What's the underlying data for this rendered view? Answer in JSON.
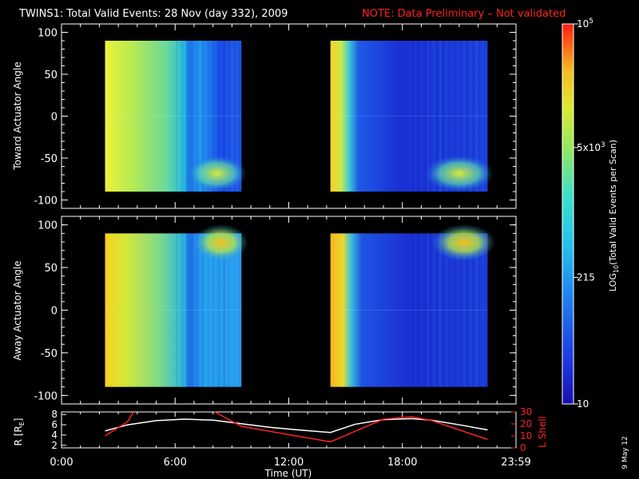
{
  "title": "TWINS1: Total Valid Events: 28 Nov (day 332), 2009",
  "note": "NOTE: Data Preliminary – Not validated",
  "stamp": "9 May 12",
  "colors": {
    "note": "#ff2020",
    "axes": "#ffffff",
    "background": "#000000",
    "lshell": "#ff2020",
    "radius": "#ffffff"
  },
  "chart_data": [
    {
      "type": "heatmap",
      "panel": "toward",
      "ylabel": "Toward Actuator Angle",
      "ylim": [
        -110,
        110
      ],
      "yticks": [
        "100",
        "50",
        "0",
        "-50",
        "-100"
      ],
      "ytick_values": [
        100,
        50,
        0,
        -50,
        -100
      ],
      "xlim_hours": [
        0,
        24
      ],
      "data_blocks_hours": [
        [
          2.3,
          9.5
        ],
        [
          14.2,
          22.5
        ]
      ],
      "angle_range": [
        -90,
        90
      ]
    },
    {
      "type": "heatmap",
      "panel": "away",
      "ylabel": "Away Actuator Angle",
      "ylim": [
        -110,
        110
      ],
      "yticks": [
        "100",
        "50",
        "0",
        "-50",
        "-100"
      ],
      "ytick_values": [
        100,
        50,
        0,
        -50,
        -100
      ],
      "xlim_hours": [
        0,
        24
      ],
      "data_blocks_hours": [
        [
          2.3,
          9.5
        ],
        [
          14.2,
          22.5
        ]
      ],
      "angle_range": [
        -90,
        90
      ]
    },
    {
      "type": "line",
      "panel": "orbit",
      "ylabel_left": "R [RE]",
      "ylabel_left_main": "R [R",
      "ylabel_left_sub": "E",
      "ylabel_left_close": "]",
      "ylabel_right": "L Shell",
      "ylim_left": [
        1.5,
        8.5
      ],
      "ylim_right": [
        0,
        30
      ],
      "yticks_left": [
        "8",
        "6",
        "4",
        "2"
      ],
      "yticks_left_values": [
        8,
        6,
        4,
        2
      ],
      "yticks_right": [
        "30",
        "20",
        "10",
        "0"
      ],
      "yticks_right_values": [
        30,
        20,
        10,
        0
      ],
      "xlabel": "Time (UT)",
      "xticks": [
        "0:00",
        "6:00",
        "12:00",
        "18:00",
        "23:59"
      ],
      "xtick_hours": [
        0,
        6,
        12,
        18,
        24
      ],
      "series": [
        {
          "name": "R",
          "axis": "left",
          "x": [
            2.3,
            3.5,
            5,
            6.5,
            8,
            9.5,
            11,
            12.5,
            14.2,
            15.5,
            17,
            18.5,
            19.5,
            21,
            22.5
          ],
          "y": [
            4.8,
            6.0,
            6.8,
            7.1,
            6.9,
            6.2,
            5.5,
            5.0,
            4.5,
            6.1,
            7.0,
            7.2,
            6.9,
            6.0,
            5.0
          ]
        },
        {
          "name": "L Shell",
          "axis": "right",
          "x": [
            2.3,
            3.5,
            3.8,
            null,
            8.1,
            9.5,
            14.2,
            17,
            18.5,
            19.5,
            22.5
          ],
          "y": [
            10,
            22,
            30,
            null,
            30,
            18,
            5,
            24,
            26,
            23,
            7
          ]
        }
      ]
    }
  ],
  "colorbar": {
    "label_main": "LOG",
    "label_sub": "10",
    "label_rest": "(Total Valid Events per Scan)",
    "ticks": [
      {
        "base": "10",
        "exp": "5",
        "value": 100000
      },
      {
        "base": "5x10",
        "exp": "3",
        "value": 5000
      },
      {
        "base": "215",
        "exp": "",
        "value": 215
      },
      {
        "base": "10",
        "exp": "",
        "value": 10
      }
    ],
    "range": [
      10,
      100000
    ],
    "scale": "log"
  }
}
